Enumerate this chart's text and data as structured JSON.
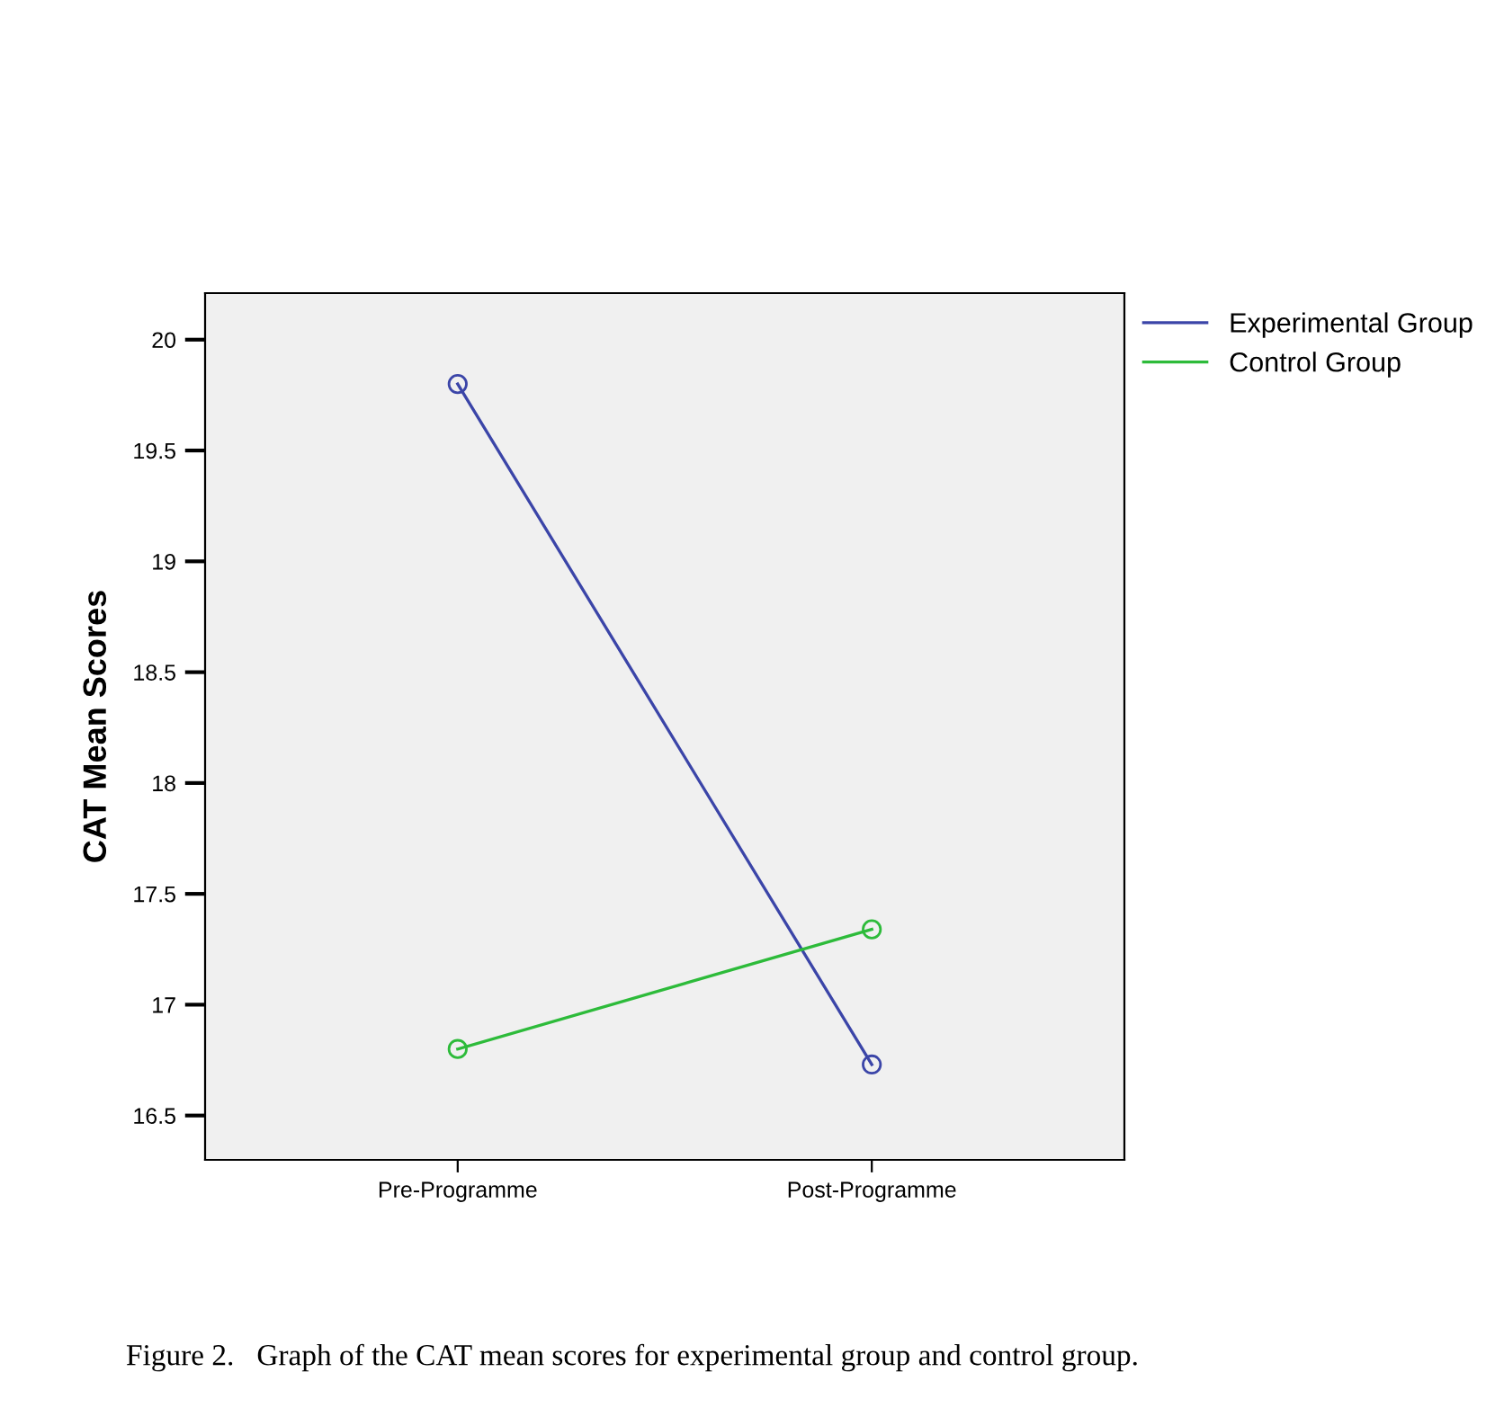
{
  "chart_data": {
    "type": "line",
    "ylabel": "CAT Mean Scores",
    "categories": [
      "Pre-Programme",
      "Post-Programme"
    ],
    "series": [
      {
        "name": "Experimental Group",
        "color": "#3b45a8",
        "values": [
          19.8,
          16.73
        ]
      },
      {
        "name": "Control Group",
        "color": "#2dbb3a",
        "values": [
          16.8,
          17.34
        ]
      }
    ],
    "ylim": [
      16.3,
      20.21
    ],
    "yticks": [
      16.5,
      17,
      17.5,
      18,
      18.5,
      19,
      19.5,
      20
    ],
    "grid": false,
    "legend": "top right",
    "marker": "circle",
    "line_style": "solid",
    "annotations": [
      "Figure 2.   Graph of the CAT mean scores for experimental group and control group."
    ]
  }
}
